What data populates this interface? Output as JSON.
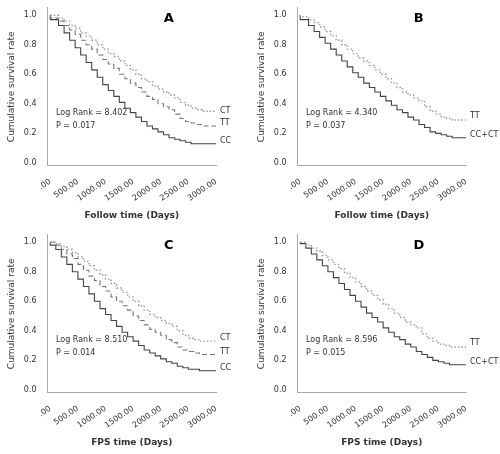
{
  "chart_data": [
    {
      "type": "step",
      "title": "A",
      "x_label": "Follow time (Days)",
      "y_label": "Cumulative survival rate",
      "annotations": [
        "Log Rank = 8.402",
        "P = 0.017"
      ],
      "xlim": [
        -50,
        3000
      ],
      "ylim": [
        -0.02,
        1.05
      ],
      "xticks": [
        {
          "value": 0,
          "label": ".00"
        },
        {
          "value": 500,
          "label": "500.00"
        },
        {
          "value": 1000,
          "label": "1000.00"
        },
        {
          "value": 1500,
          "label": "1500.00"
        },
        {
          "value": 2000,
          "label": "2000.00"
        },
        {
          "value": 2500,
          "label": "2500.00"
        },
        {
          "value": 3000,
          "label": "3000.00"
        }
      ],
      "yticks": [
        {
          "value": 0.0,
          "label": "0.0"
        },
        0.2,
        0.4,
        0.6,
        0.8,
        {
          "value": 1.0,
          "label": "1.0"
        }
      ],
      "grid": false,
      "series": [
        {
          "name": "CT",
          "line_style": "dotted",
          "color": "#999999",
          "label_y": 0.35,
          "x": [
            0,
            150,
            250,
            350,
            450,
            550,
            650,
            750,
            850,
            950,
            1050,
            1150,
            1250,
            1350,
            1450,
            1550,
            1650,
            1750,
            1850,
            1950,
            2050,
            2150,
            2250,
            2350,
            2450,
            2550,
            2650,
            2750,
            2900,
            3000
          ],
          "values": [
            1.0,
            1.0,
            0.98,
            0.96,
            0.93,
            0.91,
            0.88,
            0.86,
            0.83,
            0.8,
            0.77,
            0.74,
            0.72,
            0.69,
            0.66,
            0.63,
            0.6,
            0.57,
            0.55,
            0.52,
            0.5,
            0.48,
            0.46,
            0.44,
            0.41,
            0.39,
            0.37,
            0.36,
            0.35,
            0.35
          ]
        },
        {
          "name": "TT",
          "line_style": "dashed",
          "color": "#777777",
          "label_y": 0.27,
          "x": [
            0,
            150,
            250,
            350,
            450,
            550,
            650,
            750,
            850,
            950,
            1050,
            1150,
            1250,
            1350,
            1450,
            1550,
            1650,
            1750,
            1850,
            1950,
            2050,
            2150,
            2250,
            2350,
            2450,
            2550,
            2650,
            2750,
            2900,
            3000
          ],
          "values": [
            1.0,
            0.98,
            0.96,
            0.93,
            0.9,
            0.87,
            0.83,
            0.8,
            0.77,
            0.73,
            0.7,
            0.67,
            0.64,
            0.6,
            0.57,
            0.54,
            0.51,
            0.48,
            0.45,
            0.43,
            0.4,
            0.38,
            0.36,
            0.33,
            0.3,
            0.28,
            0.27,
            0.26,
            0.25,
            0.25
          ]
        },
        {
          "name": "CC",
          "line_style": "solid",
          "color": "#444444",
          "label_y": 0.15,
          "x": [
            0,
            150,
            250,
            350,
            450,
            550,
            650,
            750,
            850,
            950,
            1050,
            1150,
            1250,
            1350,
            1450,
            1550,
            1650,
            1750,
            1850,
            1950,
            2050,
            2150,
            2250,
            2350,
            2450,
            2550,
            2650,
            2750,
            2900,
            3000
          ],
          "values": [
            1.0,
            0.97,
            0.93,
            0.88,
            0.83,
            0.78,
            0.73,
            0.68,
            0.63,
            0.58,
            0.53,
            0.49,
            0.45,
            0.41,
            0.37,
            0.34,
            0.31,
            0.28,
            0.25,
            0.23,
            0.21,
            0.19,
            0.17,
            0.16,
            0.15,
            0.14,
            0.13,
            0.13,
            0.13,
            0.13
          ]
        }
      ]
    },
    {
      "type": "step",
      "title": "B",
      "x_label": "Follow time (Days)",
      "y_label": "Cumulative survival rate",
      "annotations": [
        "Log Rank = 4.340",
        "P = 0.037"
      ],
      "xlim": [
        -50,
        3000
      ],
      "ylim": [
        -0.02,
        1.05
      ],
      "xticks": [
        {
          "value": 0,
          "label": ".00"
        },
        {
          "value": 500,
          "label": "500.00"
        },
        {
          "value": 1000,
          "label": "1000.00"
        },
        {
          "value": 1500,
          "label": "1500.00"
        },
        {
          "value": 2000,
          "label": "2000.00"
        },
        {
          "value": 2500,
          "label": "2500.00"
        },
        {
          "value": 3000,
          "label": "3000.00"
        }
      ],
      "yticks": [
        {
          "value": 0.0,
          "label": "0.0"
        },
        0.2,
        0.4,
        0.6,
        0.8,
        {
          "value": 1.0,
          "label": "1.0"
        }
      ],
      "grid": false,
      "series": [
        {
          "name": "TT",
          "line_style": "dotted",
          "color": "#999999",
          "label_y": 0.32,
          "x": [
            0,
            150,
            250,
            350,
            450,
            550,
            650,
            750,
            850,
            950,
            1050,
            1150,
            1250,
            1350,
            1450,
            1550,
            1650,
            1750,
            1850,
            1950,
            2050,
            2150,
            2250,
            2350,
            2450,
            2550,
            2650,
            2750,
            2900,
            3000
          ],
          "values": [
            1.0,
            0.99,
            0.97,
            0.95,
            0.92,
            0.89,
            0.86,
            0.83,
            0.8,
            0.77,
            0.74,
            0.71,
            0.69,
            0.66,
            0.63,
            0.6,
            0.57,
            0.54,
            0.51,
            0.48,
            0.46,
            0.44,
            0.42,
            0.38,
            0.35,
            0.33,
            0.31,
            0.3,
            0.29,
            0.29
          ]
        },
        {
          "name": "CC+CT",
          "line_style": "solid",
          "color": "#444444",
          "label_y": 0.19,
          "x": [
            0,
            150,
            250,
            350,
            450,
            550,
            650,
            750,
            850,
            950,
            1050,
            1150,
            1250,
            1350,
            1450,
            1550,
            1650,
            1750,
            1850,
            1950,
            2050,
            2150,
            2250,
            2350,
            2450,
            2550,
            2650,
            2750,
            2900,
            3000
          ],
          "values": [
            1.0,
            0.97,
            0.93,
            0.89,
            0.85,
            0.81,
            0.77,
            0.73,
            0.69,
            0.65,
            0.61,
            0.58,
            0.54,
            0.51,
            0.48,
            0.45,
            0.42,
            0.39,
            0.36,
            0.34,
            0.31,
            0.29,
            0.26,
            0.24,
            0.21,
            0.2,
            0.19,
            0.18,
            0.17,
            0.17
          ]
        }
      ]
    },
    {
      "type": "step",
      "title": "C",
      "x_label": "FPS time (Days)",
      "y_label": "Cumulative survival rate",
      "annotations": [
        "Log Rank = 8.510",
        "P = 0.014"
      ],
      "xlim": [
        -50,
        3000
      ],
      "ylim": [
        -0.02,
        1.05
      ],
      "xticks": [
        {
          "value": 0,
          "label": ".00"
        },
        {
          "value": 500,
          "label": "500.00"
        },
        {
          "value": 1000,
          "label": "1000.00"
        },
        {
          "value": 1500,
          "label": "1500.00"
        },
        {
          "value": 2000,
          "label": "2000.00"
        },
        {
          "value": 2500,
          "label": "2500.00"
        },
        {
          "value": 3000,
          "label": "3000.00"
        }
      ],
      "yticks": [
        {
          "value": 0.0,
          "label": "0.0"
        },
        0.2,
        0.4,
        0.6,
        0.8,
        {
          "value": 1.0,
          "label": "1.0"
        }
      ],
      "grid": false,
      "series": [
        {
          "name": "CT",
          "line_style": "dotted",
          "color": "#999999",
          "label_y": 0.35,
          "x": [
            0,
            100,
            200,
            300,
            400,
            500,
            600,
            700,
            800,
            900,
            1000,
            1100,
            1200,
            1300,
            1400,
            1500,
            1600,
            1700,
            1800,
            1900,
            2000,
            2100,
            2200,
            2300,
            2400,
            2500,
            2600,
            2700,
            2800,
            3000
          ],
          "values": [
            1.0,
            1.0,
            0.99,
            0.97,
            0.95,
            0.93,
            0.9,
            0.87,
            0.84,
            0.81,
            0.78,
            0.75,
            0.72,
            0.69,
            0.66,
            0.63,
            0.6,
            0.57,
            0.54,
            0.51,
            0.49,
            0.47,
            0.45,
            0.43,
            0.4,
            0.37,
            0.35,
            0.34,
            0.33,
            0.33
          ]
        },
        {
          "name": "TT",
          "line_style": "dashed",
          "color": "#777777",
          "label_y": 0.26,
          "x": [
            0,
            100,
            200,
            300,
            400,
            500,
            600,
            700,
            800,
            900,
            1000,
            1100,
            1200,
            1300,
            1400,
            1500,
            1600,
            1700,
            1800,
            1900,
            2000,
            2100,
            2200,
            2300,
            2400,
            2500,
            2600,
            2700,
            2800,
            3000
          ],
          "values": [
            1.0,
            1.0,
            0.98,
            0.95,
            0.92,
            0.89,
            0.85,
            0.81,
            0.77,
            0.74,
            0.7,
            0.67,
            0.63,
            0.6,
            0.57,
            0.54,
            0.5,
            0.47,
            0.44,
            0.41,
            0.39,
            0.37,
            0.34,
            0.32,
            0.29,
            0.27,
            0.26,
            0.25,
            0.24,
            0.24
          ]
        },
        {
          "name": "CC",
          "line_style": "solid",
          "color": "#444444",
          "label_y": 0.15,
          "x": [
            0,
            100,
            200,
            300,
            400,
            500,
            600,
            700,
            800,
            900,
            1000,
            1100,
            1200,
            1300,
            1400,
            1500,
            1600,
            1700,
            1800,
            1900,
            2000,
            2100,
            2200,
            2300,
            2400,
            2500,
            2600,
            2700,
            2800,
            3000
          ],
          "values": [
            1.0,
            0.98,
            0.95,
            0.9,
            0.85,
            0.8,
            0.75,
            0.7,
            0.65,
            0.6,
            0.55,
            0.51,
            0.47,
            0.43,
            0.39,
            0.36,
            0.33,
            0.3,
            0.27,
            0.25,
            0.23,
            0.21,
            0.19,
            0.18,
            0.16,
            0.15,
            0.14,
            0.14,
            0.13,
            0.13
          ]
        }
      ]
    },
    {
      "type": "step",
      "title": "D",
      "x_label": "FPS time (Days)",
      "y_label": "Cumulative survival rate",
      "annotations": [
        "Log Rank = 8.596",
        "P = 0.015"
      ],
      "xlim": [
        -50,
        3000
      ],
      "ylim": [
        -0.02,
        1.05
      ],
      "xticks": [
        {
          "value": 0,
          "label": ".00"
        },
        {
          "value": 500,
          "label": "500.00"
        },
        {
          "value": 1000,
          "label": "1000.00"
        },
        {
          "value": 1500,
          "label": "1500.00"
        },
        {
          "value": 2000,
          "label": "2000.00"
        },
        {
          "value": 2500,
          "label": "2500.00"
        },
        {
          "value": 3000,
          "label": "3000.00"
        }
      ],
      "yticks": [
        {
          "value": 0.0,
          "label": "0.0"
        },
        0.2,
        0.4,
        0.6,
        0.8,
        {
          "value": 1.0,
          "label": "1.0"
        }
      ],
      "grid": false,
      "series": [
        {
          "name": "TT",
          "line_style": "dotted",
          "color": "#999999",
          "label_y": 0.32,
          "x": [
            0,
            100,
            200,
            300,
            400,
            500,
            600,
            700,
            800,
            900,
            1000,
            1100,
            1200,
            1300,
            1400,
            1500,
            1600,
            1700,
            1800,
            1900,
            2000,
            2100,
            2200,
            2300,
            2400,
            2500,
            2600,
            2700,
            2800,
            3000
          ],
          "values": [
            1.0,
            1.0,
            0.98,
            0.96,
            0.94,
            0.91,
            0.88,
            0.85,
            0.82,
            0.79,
            0.76,
            0.73,
            0.7,
            0.67,
            0.64,
            0.61,
            0.58,
            0.55,
            0.52,
            0.49,
            0.46,
            0.44,
            0.42,
            0.38,
            0.35,
            0.33,
            0.31,
            0.3,
            0.29,
            0.29
          ]
        },
        {
          "name": "CC+CT",
          "line_style": "solid",
          "color": "#444444",
          "label_y": 0.19,
          "x": [
            0,
            100,
            200,
            300,
            400,
            500,
            600,
            700,
            800,
            900,
            1000,
            1100,
            1200,
            1300,
            1400,
            1500,
            1600,
            1700,
            1800,
            1900,
            2000,
            2100,
            2200,
            2300,
            2400,
            2500,
            2600,
            2700,
            2800,
            3000
          ],
          "values": [
            1.0,
            0.99,
            0.96,
            0.92,
            0.88,
            0.84,
            0.8,
            0.76,
            0.72,
            0.68,
            0.64,
            0.6,
            0.56,
            0.52,
            0.49,
            0.46,
            0.42,
            0.39,
            0.36,
            0.34,
            0.31,
            0.29,
            0.26,
            0.24,
            0.22,
            0.2,
            0.19,
            0.18,
            0.17,
            0.17
          ]
        }
      ]
    }
  ]
}
